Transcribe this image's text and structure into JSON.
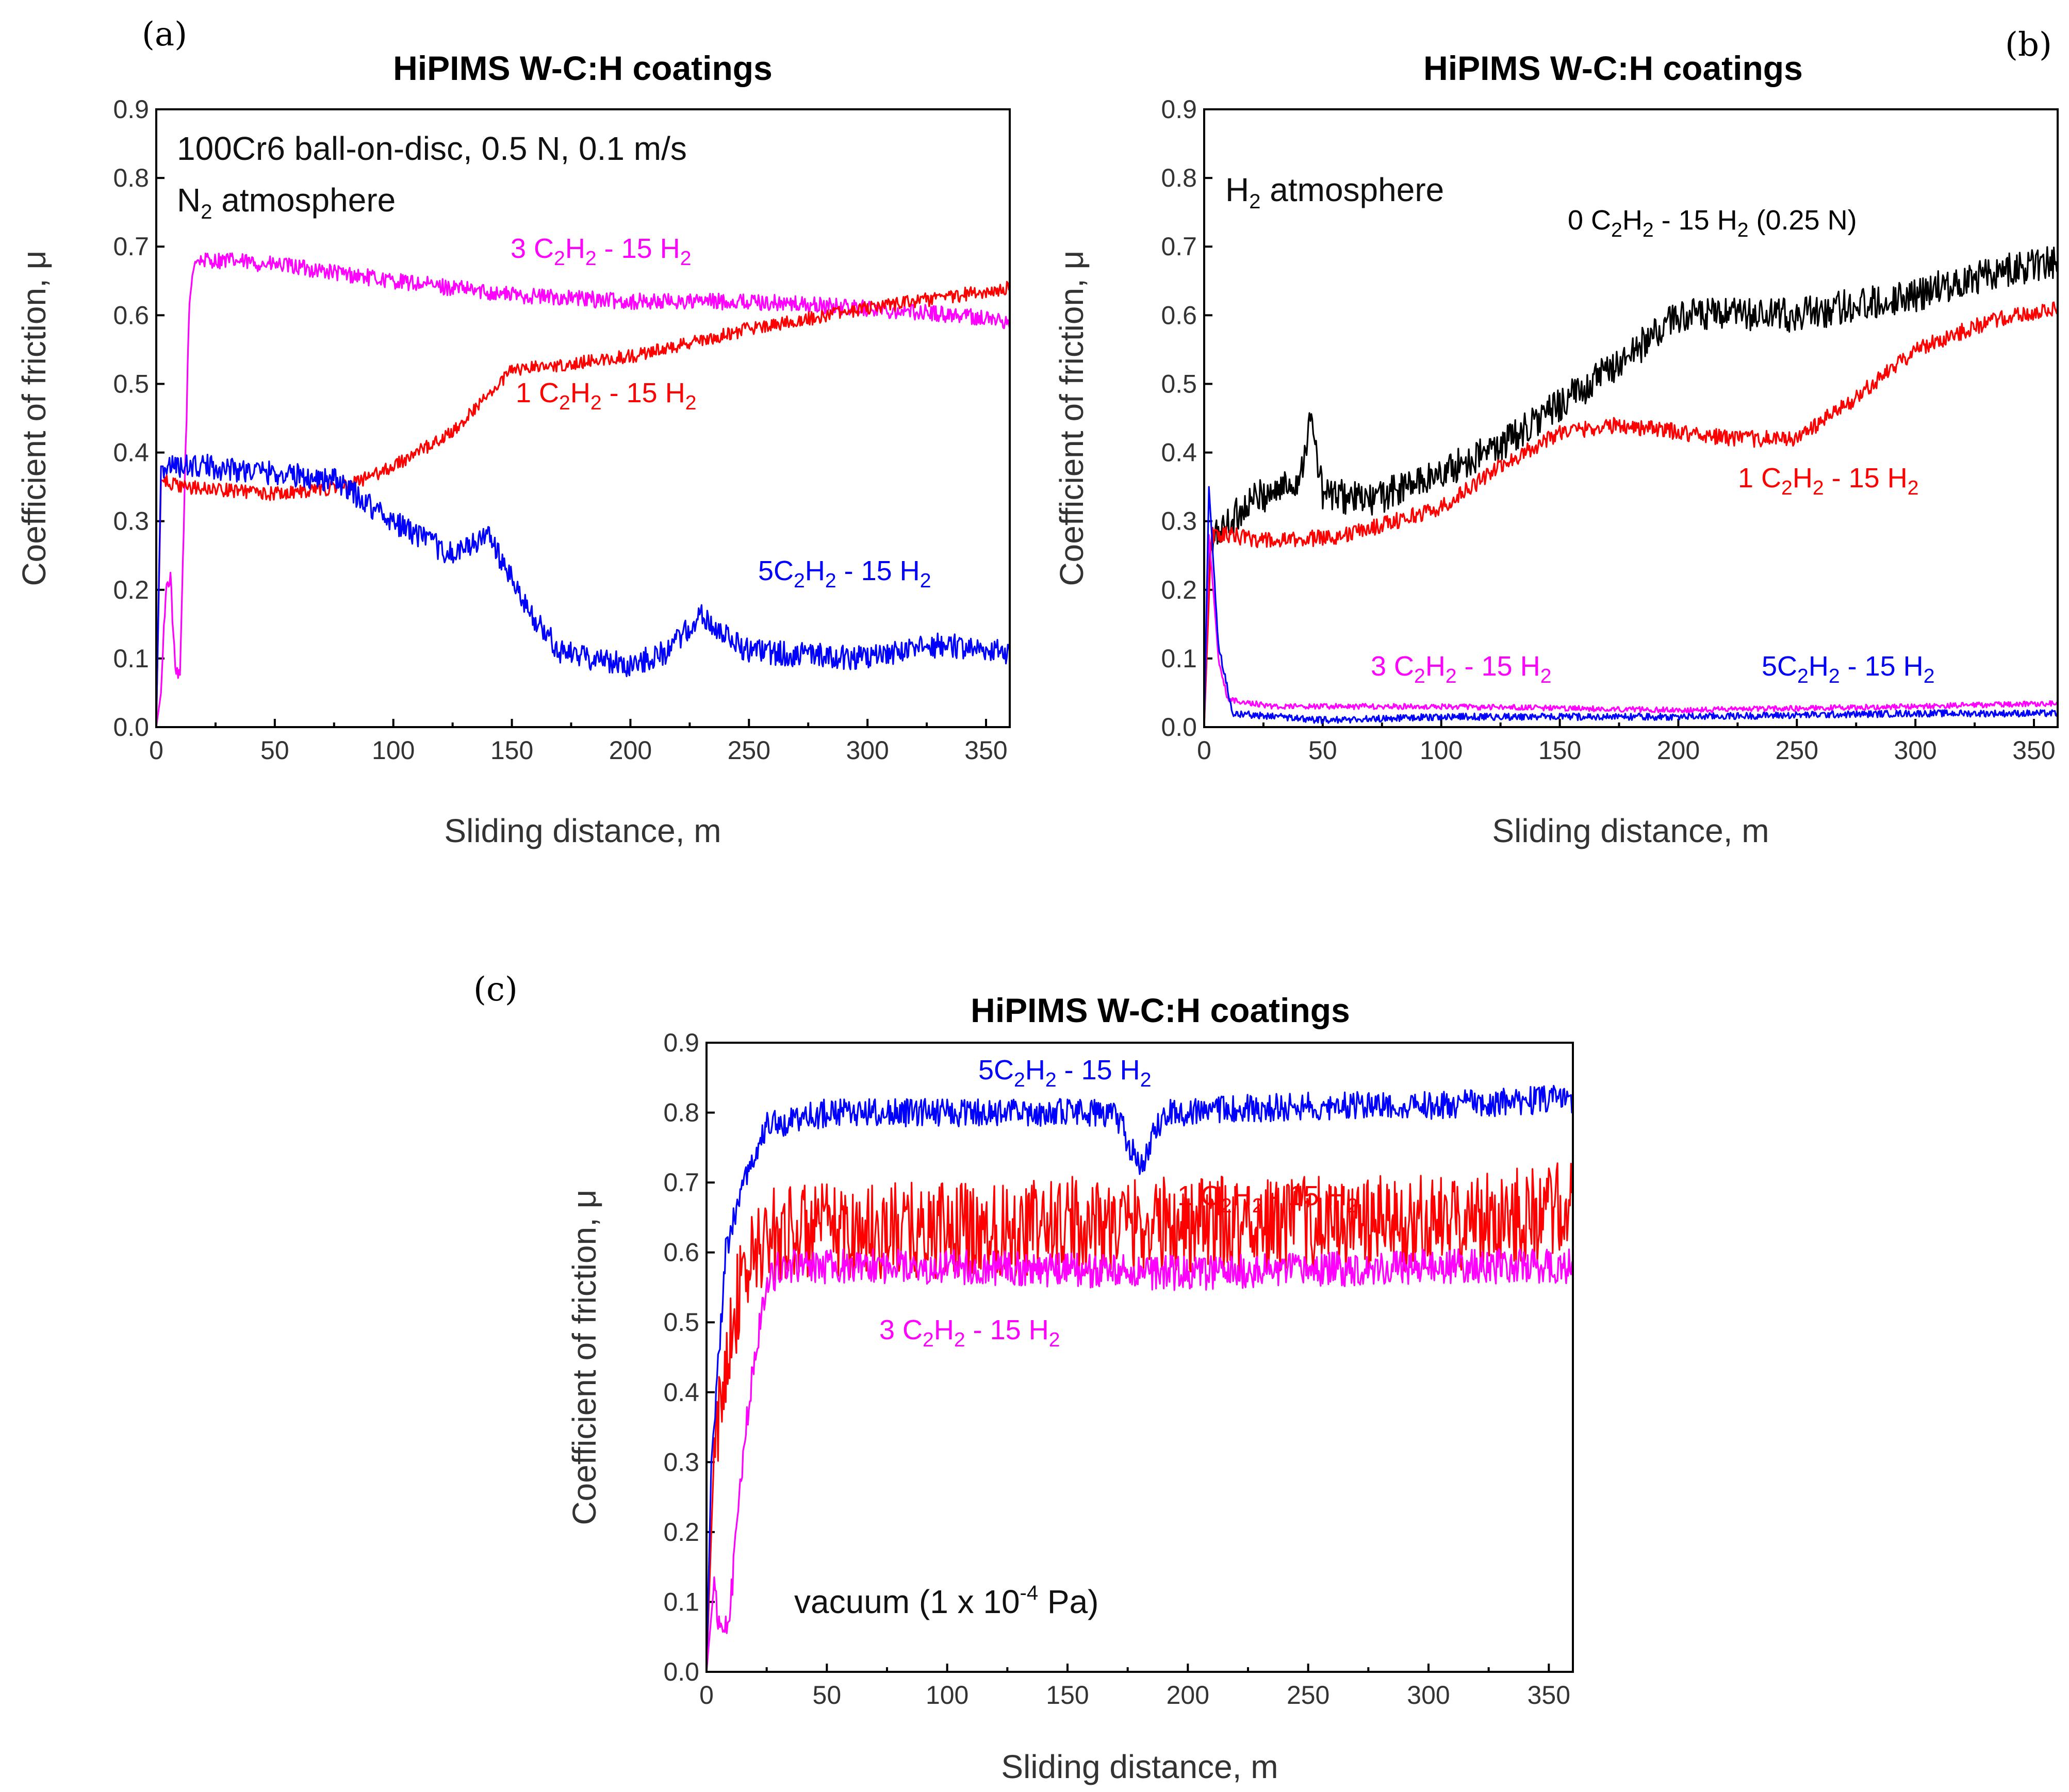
{
  "chart_data": [
    {
      "panel": "(a)",
      "type": "line",
      "title": "HiPIMS W-C:H coatings",
      "xlabel": "Sliding distance, m",
      "ylabel": "Coefficient of friction, μ",
      "xlim": [
        0,
        360
      ],
      "ylim": [
        0,
        0.9
      ],
      "xticks": [
        0,
        50,
        100,
        150,
        200,
        250,
        300,
        350
      ],
      "yticks": [
        0.0,
        0.1,
        0.2,
        0.3,
        0.4,
        0.5,
        0.6,
        0.7,
        0.8,
        0.9
      ],
      "annotations": [
        "100Cr6 ball-on-disc, 0.5 N, 0.1 m/s",
        "N2 atmosphere"
      ],
      "series": [
        {
          "name": "3 C2H2 - 15 H2",
          "color": "#ff00ff",
          "noise": 0.012,
          "points": [
            [
              0,
              0.0
            ],
            [
              2,
              0.05
            ],
            [
              4,
              0.2
            ],
            [
              6,
              0.22
            ],
            [
              8,
              0.08
            ],
            [
              10,
              0.07
            ],
            [
              12,
              0.35
            ],
            [
              14,
              0.62
            ],
            [
              16,
              0.68
            ],
            [
              30,
              0.68
            ],
            [
              60,
              0.67
            ],
            [
              100,
              0.65
            ],
            [
              150,
              0.63
            ],
            [
              200,
              0.62
            ],
            [
              250,
              0.62
            ],
            [
              300,
              0.61
            ],
            [
              340,
              0.6
            ],
            [
              360,
              0.59
            ]
          ],
          "label_text": "3 C",
          "label_sub": "2",
          "label_mid": "H",
          "label_sub2": "2",
          "label_tail": " - 15 H",
          "label_sub3": "2"
        },
        {
          "name": "1 C2H2 - 15 H2",
          "color": "#ff0000",
          "noise": 0.01,
          "points": [
            [
              0,
              0.0
            ],
            [
              2,
              0.36
            ],
            [
              10,
              0.35
            ],
            [
              50,
              0.34
            ],
            [
              80,
              0.35
            ],
            [
              100,
              0.38
            ],
            [
              125,
              0.43
            ],
            [
              150,
              0.52
            ],
            [
              175,
              0.53
            ],
            [
              200,
              0.54
            ],
            [
              250,
              0.58
            ],
            [
              300,
              0.61
            ],
            [
              340,
              0.63
            ],
            [
              360,
              0.64
            ]
          ],
          "label_text": "1 C",
          "label_sub": "2",
          "label_mid": "H",
          "label_sub2": "2",
          "label_tail": " - 15 H",
          "label_sub3": "2"
        },
        {
          "name": "5C2H2 - 15 H2",
          "color": "#0000ff",
          "noise": 0.018,
          "points": [
            [
              0,
              0.0
            ],
            [
              2,
              0.38
            ],
            [
              20,
              0.38
            ],
            [
              50,
              0.37
            ],
            [
              75,
              0.36
            ],
            [
              100,
              0.3
            ],
            [
              125,
              0.25
            ],
            [
              140,
              0.28
            ],
            [
              155,
              0.18
            ],
            [
              170,
              0.11
            ],
            [
              200,
              0.09
            ],
            [
              215,
              0.11
            ],
            [
              230,
              0.16
            ],
            [
              250,
              0.11
            ],
            [
              300,
              0.1
            ],
            [
              330,
              0.12
            ],
            [
              360,
              0.11
            ]
          ],
          "label_text": "5C",
          "label_sub": "2",
          "label_mid": "H",
          "label_sub2": "2",
          "label_tail": " - 15 H",
          "label_sub3": "2"
        }
      ]
    },
    {
      "panel": "(b)",
      "type": "line",
      "title": "HiPIMS W-C:H coatings",
      "xlabel": "Sliding distance, m",
      "ylabel": "Coefficient of friction, μ",
      "xlim": [
        0,
        360
      ],
      "ylim": [
        0,
        0.9
      ],
      "xticks": [
        0,
        50,
        100,
        150,
        200,
        250,
        300,
        350
      ],
      "yticks": [
        0.0,
        0.1,
        0.2,
        0.3,
        0.4,
        0.5,
        0.6,
        0.7,
        0.8,
        0.9
      ],
      "annotations": [
        "H2 atmosphere"
      ],
      "series": [
        {
          "name": "0 C2H2 - 15 H2 (0.25 N)",
          "color": "#000000",
          "noise": 0.025,
          "points": [
            [
              0,
              0.0
            ],
            [
              2,
              0.25
            ],
            [
              5,
              0.28
            ],
            [
              20,
              0.33
            ],
            [
              40,
              0.36
            ],
            [
              45,
              0.45
            ],
            [
              50,
              0.34
            ],
            [
              70,
              0.33
            ],
            [
              100,
              0.37
            ],
            [
              125,
              0.41
            ],
            [
              150,
              0.47
            ],
            [
              175,
              0.53
            ],
            [
              200,
              0.6
            ],
            [
              250,
              0.6
            ],
            [
              300,
              0.63
            ],
            [
              330,
              0.66
            ],
            [
              360,
              0.68
            ]
          ],
          "label_text": "0 C",
          "label_sub": "2",
          "label_mid": "H",
          "label_sub2": "2",
          "label_tail": " - 15 H",
          "label_sub3": "2",
          "label_extra": " (0.25 N)"
        },
        {
          "name": "1 C2H2 - 15 H2",
          "color": "#ff0000",
          "noise": 0.012,
          "points": [
            [
              0,
              0.0
            ],
            [
              3,
              0.28
            ],
            [
              10,
              0.28
            ],
            [
              30,
              0.27
            ],
            [
              60,
              0.28
            ],
            [
              100,
              0.32
            ],
            [
              125,
              0.38
            ],
            [
              150,
              0.43
            ],
            [
              175,
              0.44
            ],
            [
              200,
              0.43
            ],
            [
              225,
              0.42
            ],
            [
              250,
              0.42
            ],
            [
              275,
              0.48
            ],
            [
              300,
              0.55
            ],
            [
              330,
              0.59
            ],
            [
              360,
              0.61
            ]
          ],
          "label_text": "1 C",
          "label_sub": "2",
          "label_mid": "H",
          "label_sub2": "2",
          "label_tail": " - 15 H",
          "label_sub3": "2"
        },
        {
          "name": "3 C2H2 - 15 H2",
          "color": "#ff00ff",
          "noise": 0.004,
          "points": [
            [
              0,
              0.0
            ],
            [
              2,
              0.28
            ],
            [
              6,
              0.1
            ],
            [
              10,
              0.04
            ],
            [
              30,
              0.03
            ],
            [
              100,
              0.03
            ],
            [
              200,
              0.025
            ],
            [
              300,
              0.03
            ],
            [
              360,
              0.035
            ]
          ],
          "label_text": "3 C",
          "label_sub": "2",
          "label_mid": "H",
          "label_sub2": "2",
          "label_tail": " - 15 H",
          "label_sub3": "2"
        },
        {
          "name": "5C2H2 - 15 H2",
          "color": "#0000ff",
          "noise": 0.005,
          "points": [
            [
              0,
              0.0
            ],
            [
              2,
              0.35
            ],
            [
              6,
              0.12
            ],
            [
              12,
              0.02
            ],
            [
              50,
              0.01
            ],
            [
              100,
              0.015
            ],
            [
              200,
              0.015
            ],
            [
              300,
              0.02
            ],
            [
              360,
              0.02
            ]
          ],
          "label_text": "5C",
          "label_sub": "2",
          "label_mid": "H",
          "label_sub2": "2",
          "label_tail": " - 15 H",
          "label_sub3": "2"
        }
      ]
    },
    {
      "panel": "(c)",
      "type": "line",
      "title": "HiPIMS W-C:H coatings",
      "xlabel": "Sliding distance, m",
      "ylabel": "Coefficient of friction, μ",
      "xlim": [
        0,
        360
      ],
      "ylim": [
        0,
        0.9
      ],
      "xticks": [
        0,
        50,
        100,
        150,
        200,
        250,
        300,
        350
      ],
      "yticks": [
        0.0,
        0.1,
        0.2,
        0.3,
        0.4,
        0.5,
        0.6,
        0.7,
        0.8,
        0.9
      ],
      "annotations": [
        "vacuum (1 x 10",
        "-4",
        " Pa)"
      ],
      "series": [
        {
          "name": "1 C2H2 - 15 H2",
          "color": "#ff0000",
          "noise": 0.07,
          "points": [
            [
              0,
              0.0
            ],
            [
              3,
              0.3
            ],
            [
              10,
              0.5
            ],
            [
              20,
              0.6
            ],
            [
              30,
              0.63
            ],
            [
              50,
              0.63
            ],
            [
              100,
              0.63
            ],
            [
              150,
              0.64
            ],
            [
              200,
              0.64
            ],
            [
              250,
              0.64
            ],
            [
              300,
              0.64
            ],
            [
              360,
              0.66
            ]
          ],
          "label_text": "1 C",
          "label_sub": "2",
          "label_mid": "H",
          "label_sub2": "2",
          "label_tail": " - 15 H",
          "label_sub3": "2"
        },
        {
          "name": "5C2H2 - 15 H2",
          "color": "#0000ff",
          "noise": 0.02,
          "points": [
            [
              0,
              0.0
            ],
            [
              2,
              0.3
            ],
            [
              8,
              0.6
            ],
            [
              15,
              0.7
            ],
            [
              25,
              0.78
            ],
            [
              50,
              0.8
            ],
            [
              100,
              0.8
            ],
            [
              170,
              0.8
            ],
            [
              180,
              0.72
            ],
            [
              190,
              0.8
            ],
            [
              250,
              0.81
            ],
            [
              300,
              0.81
            ],
            [
              360,
              0.82
            ]
          ],
          "label_text": "5C",
          "label_sub": "2",
          "label_mid": "H",
          "label_sub2": "2",
          "label_tail": " - 15 H",
          "label_sub3": "2"
        },
        {
          "name": "3 C2H2 - 15 H2",
          "color": "#ff00ff",
          "noise": 0.025,
          "points": [
            [
              0,
              0.0
            ],
            [
              3,
              0.12
            ],
            [
              6,
              0.05
            ],
            [
              10,
              0.1
            ],
            [
              15,
              0.3
            ],
            [
              20,
              0.45
            ],
            [
              25,
              0.55
            ],
            [
              30,
              0.58
            ],
            [
              50,
              0.58
            ],
            [
              100,
              0.58
            ],
            [
              200,
              0.57
            ],
            [
              300,
              0.58
            ],
            [
              360,
              0.58
            ]
          ],
          "label_text": "3 C",
          "label_sub": "2",
          "label_mid": "H",
          "label_sub2": "2",
          "label_tail": " - 15 H",
          "label_sub3": "2"
        }
      ]
    }
  ]
}
